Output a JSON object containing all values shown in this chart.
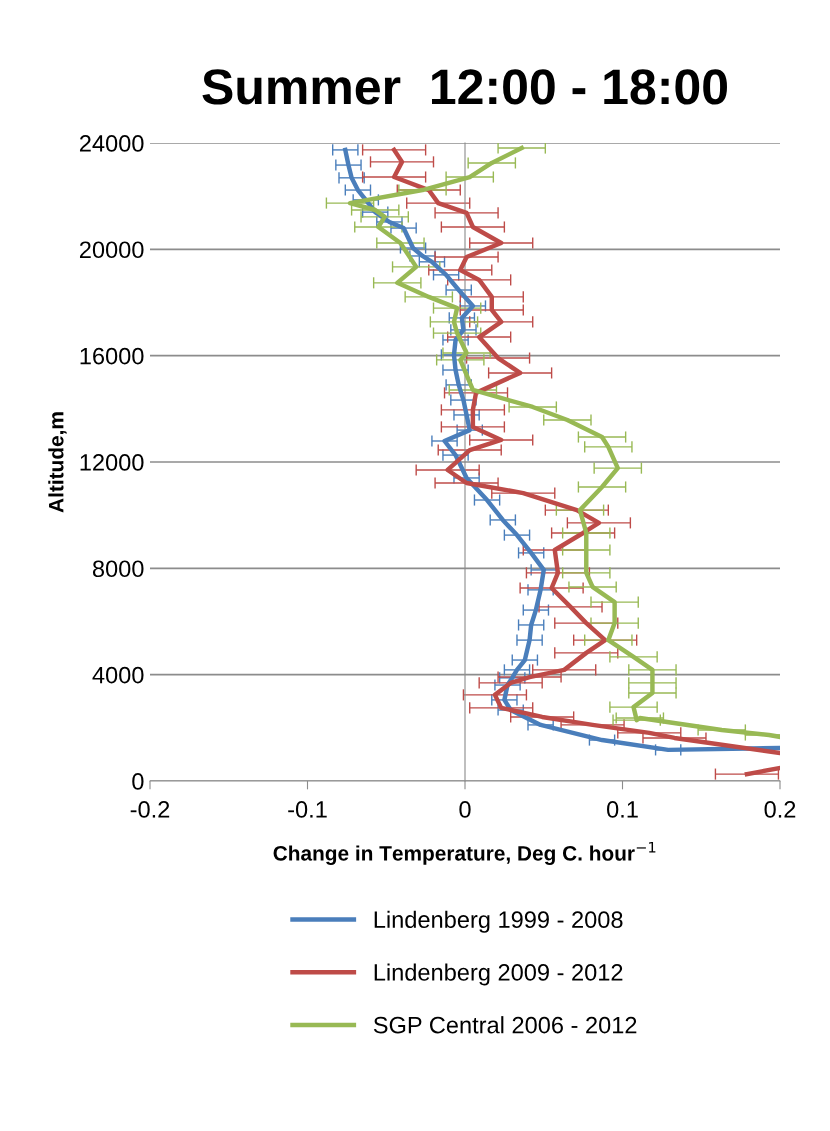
{
  "chart_data": {
    "type": "line",
    "title": "Summer  12:00 - 18:00",
    "xlabel": "Change in Temperature, Deg C. hour$^{−1}$",
    "ylabel": "Altitude,m",
    "xlim": [
      -0.2,
      0.2
    ],
    "xticks": [
      -0.2,
      -0.1,
      0,
      0.1,
      0.2
    ],
    "ylim": [
      0,
      24000
    ],
    "yticks": [
      0,
      4000,
      8000,
      12000,
      16000,
      20000,
      24000
    ],
    "grid": "y",
    "legend": "bottom",
    "marker": "none",
    "line_style": "solid",
    "series": [
      {
        "name": "Lindenberg 1999 - 2008",
        "color": "#4a7ebb",
        "x": [
          -0.076,
          -0.074,
          -0.072,
          -0.068,
          -0.063,
          -0.057,
          -0.048,
          -0.039,
          -0.033,
          -0.027,
          -0.021,
          -0.012,
          -0.004,
          0.005,
          -0.002,
          -0.001,
          -0.006,
          -0.007,
          -0.006,
          -0.004,
          -0.001,
          0.001,
          0.003,
          -0.013,
          -0.006,
          0.001,
          0.014,
          0.024,
          0.033,
          0.042,
          0.05,
          0.048,
          0.045,
          0.042,
          0.041,
          0.038,
          0.033,
          0.03,
          0.027,
          0.025,
          0.029,
          0.048,
          0.087,
          0.129,
          0.2
        ],
        "values": [
          23740,
          23170,
          22690,
          22230,
          21860,
          21400,
          21030,
          20800,
          20050,
          19750,
          19530,
          19040,
          18470,
          17870,
          17420,
          16970,
          16590,
          16030,
          15460,
          14900,
          14330,
          13770,
          13200,
          12790,
          12260,
          11400,
          10570,
          9820,
          9250,
          8580,
          7940,
          7190,
          6430,
          5870,
          5300,
          4550,
          4180,
          3880,
          3610,
          3050,
          2670,
          2110,
          1540,
          1170,
          1240
        ],
        "xerrors": [
          0.008,
          0.008,
          0.008,
          0.008,
          0.008,
          0.008,
          0.008,
          0.008,
          0.008,
          0.008,
          0.008,
          0.008,
          0.008,
          0.008,
          0.008,
          0.008,
          0.008,
          0.008,
          0.008,
          0.008,
          0.008,
          0.008,
          0.008,
          0.008,
          0.008,
          0.008,
          0.008,
          0.008,
          0.008,
          0.008,
          0.008,
          0.008,
          0.008,
          0.008,
          0.008,
          0.008,
          0.008,
          0.008,
          0.008,
          0.008,
          0.008,
          0.008,
          0.008,
          0.008,
          null
        ]
      },
      {
        "name": "Lindenberg 2009 - 2012",
        "color": "#be4b48",
        "x": [
          -0.045,
          -0.04,
          -0.045,
          -0.023,
          -0.017,
          0.001,
          0.005,
          0.023,
          0.001,
          -0.003,
          0.009,
          0.017,
          0.017,
          0.023,
          0.009,
          0.021,
          0.035,
          0.007,
          0.005,
          0.005,
          0.023,
          0.003,
          -0.011,
          0.001,
          0.037,
          0.071,
          0.085,
          0.075,
          0.057,
          0.059,
          0.055,
          0.067,
          0.077,
          0.089,
          0.077,
          0.063,
          0.041,
          0.029,
          0.019,
          0.023,
          0.049,
          0.081,
          0.117,
          0.133,
          0.2,
          null,
          0.179,
          0.2
        ],
        "values": [
          23740,
          23290,
          22720,
          22230,
          21740,
          21370,
          20840,
          20240,
          19710,
          19220,
          18850,
          18210,
          17720,
          17270,
          16700,
          15910,
          15350,
          14600,
          13960,
          13320,
          12830,
          12450,
          11700,
          11210,
          10830,
          10190,
          9710,
          9330,
          8690,
          7830,
          7260,
          6550,
          5940,
          5300,
          4820,
          4180,
          3910,
          3690,
          3240,
          2750,
          2410,
          2110,
          1810,
          1620,
          1050,
          null,
          260,
          490
        ],
        "xerrors": [
          0.02,
          0.02,
          0.02,
          0.02,
          0.02,
          0.02,
          0.02,
          0.02,
          0.02,
          0.02,
          0.02,
          0.02,
          0.02,
          0.02,
          0.02,
          0.02,
          0.02,
          0.02,
          0.02,
          0.02,
          0.02,
          0.02,
          0.02,
          0.02,
          0.02,
          0.02,
          0.02,
          0.02,
          0.02,
          0.02,
          0.02,
          0.02,
          0.02,
          0.02,
          0.02,
          0.02,
          0.02,
          0.02,
          0.02,
          0.02,
          0.02,
          0.02,
          0.02,
          0.02,
          null,
          null,
          0.02,
          null
        ]
      },
      {
        "name": "SGP Central 2006 - 2012",
        "color": "#98b954",
        "x": [
          0.036,
          0.017,
          0.003,
          -0.027,
          -0.073,
          -0.057,
          -0.051,
          -0.055,
          -0.041,
          -0.031,
          -0.043,
          -0.023,
          -0.005,
          -0.007,
          -0.005,
          0.001,
          -0.003,
          0.005,
          0.043,
          0.065,
          0.087,
          0.091,
          0.097,
          0.087,
          0.073,
          0.077,
          0.077,
          0.077,
          0.081,
          0.095,
          0.095,
          0.091,
          0.107,
          0.119,
          0.119,
          0.119,
          0.107,
          0.109,
          0.111,
          0.163,
          0.193,
          0.2
        ],
        "values": [
          23810,
          23250,
          22720,
          22230,
          21740,
          21480,
          21220,
          20840,
          20240,
          19340,
          18740,
          18210,
          17790,
          17270,
          16850,
          16100,
          15840,
          14710,
          14070,
          13580,
          12940,
          12570,
          11770,
          11060,
          10190,
          9330,
          8690,
          7830,
          7300,
          6730,
          5940,
          5300,
          4670,
          4180,
          3690,
          3310,
          2780,
          2290,
          2370,
          1920,
          1730,
          1660
        ],
        "xerrors": [
          0.015,
          0.015,
          0.015,
          0.015,
          0.015,
          0.015,
          0.015,
          0.015,
          0.015,
          0.015,
          0.015,
          0.015,
          0.015,
          0.015,
          0.015,
          0.015,
          0.015,
          0.015,
          0.015,
          0.015,
          0.015,
          0.015,
          0.015,
          0.015,
          0.015,
          0.015,
          0.015,
          0.015,
          0.015,
          0.015,
          0.015,
          0.015,
          0.015,
          0.015,
          0.015,
          0.015,
          0.015,
          0.015,
          0.015,
          0.015,
          0.015,
          null
        ]
      }
    ]
  }
}
